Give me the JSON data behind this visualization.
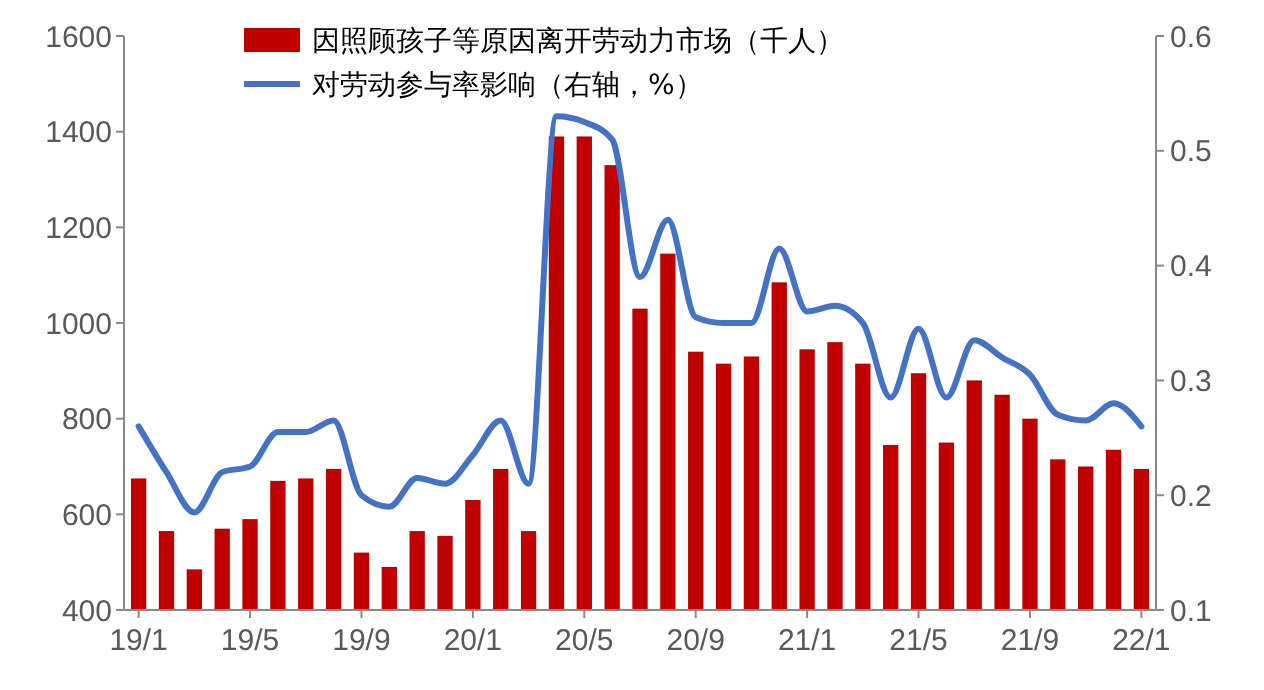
{
  "chart_data": {
    "type": "bar",
    "categories": [
      "19/1",
      null,
      null,
      null,
      "19/5",
      null,
      null,
      null,
      "19/9",
      null,
      null,
      null,
      "20/1",
      null,
      null,
      null,
      "20/5",
      null,
      null,
      null,
      "20/9",
      null,
      null,
      null,
      "21/1",
      null,
      null,
      null,
      "21/5",
      null,
      null,
      null,
      "21/9",
      null,
      null,
      null,
      "22/1"
    ],
    "series": [
      {
        "name": "因照顾孩子等原因离开劳动力市场（千人）",
        "color": "#c00000",
        "values": [
          675,
          565,
          485,
          570,
          590,
          670,
          675,
          695,
          520,
          490,
          565,
          555,
          630,
          695,
          565,
          1390,
          1390,
          1330,
          1030,
          1145,
          940,
          915,
          930,
          1085,
          945,
          960,
          915,
          745,
          895,
          750,
          880,
          850,
          800,
          715,
          700,
          735,
          695
        ]
      },
      {
        "name": "对劳动参与率影响（右轴，%）",
        "type": "line",
        "axis": "y2",
        "color": "#4472c4",
        "values": [
          0.26,
          0.22,
          0.185,
          0.22,
          0.225,
          0.255,
          0.255,
          0.265,
          0.2,
          0.19,
          0.215,
          0.21,
          0.235,
          0.265,
          0.21,
          0.53,
          0.525,
          0.51,
          0.39,
          0.44,
          0.355,
          0.35,
          0.35,
          0.415,
          0.36,
          0.365,
          0.35,
          0.285,
          0.345,
          0.285,
          0.335,
          0.32,
          0.305,
          0.27,
          0.265,
          0.28,
          0.26
        ]
      }
    ],
    "ylim": [
      400,
      1600
    ],
    "yticks": [
      400,
      600,
      800,
      1000,
      1200,
      1400,
      1600
    ],
    "y2lim": [
      0.1,
      0.6
    ],
    "y2ticks": [
      0.1,
      0.2,
      0.3,
      0.4,
      0.5,
      0.6
    ],
    "legend": "top",
    "grid": false
  }
}
